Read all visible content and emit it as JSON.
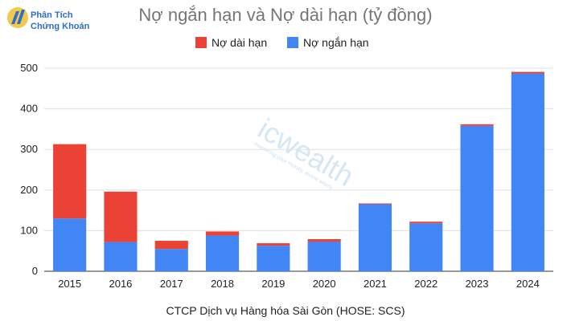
{
  "brand": {
    "line1": "Phân Tích",
    "line2": "Chứng Khoán"
  },
  "watermark": {
    "name": "icwealth",
    "tagline": "mastering your money, invest wisely"
  },
  "chart_data": {
    "type": "bar",
    "stacked": true,
    "title": "Nợ ngắn hạn và Nợ dài hạn (tỷ đồng)",
    "caption": "CTCP Dịch vụ Hàng hóa Sài Gòn (HOSE: SCS)",
    "categories": [
      "2015",
      "2016",
      "2017",
      "2018",
      "2019",
      "2020",
      "2021",
      "2022",
      "2023",
      "2024"
    ],
    "series": [
      {
        "name": "Nợ ngắn hạn",
        "color": "#4285f4",
        "values": [
          130,
          72,
          55,
          88,
          63,
          73,
          165,
          118,
          358,
          487
        ]
      },
      {
        "name": "Nợ dài hạn",
        "color": "#ea4335",
        "values": [
          183,
          124,
          20,
          10,
          6,
          6,
          2,
          4,
          4,
          4
        ]
      }
    ],
    "legend": {
      "position": "top",
      "order": [
        "Nợ dài hạn",
        "Nợ ngắn hạn"
      ]
    },
    "ylim": [
      0,
      500
    ],
    "yticks": [
      0,
      100,
      200,
      300,
      400,
      500
    ],
    "grid": true
  }
}
